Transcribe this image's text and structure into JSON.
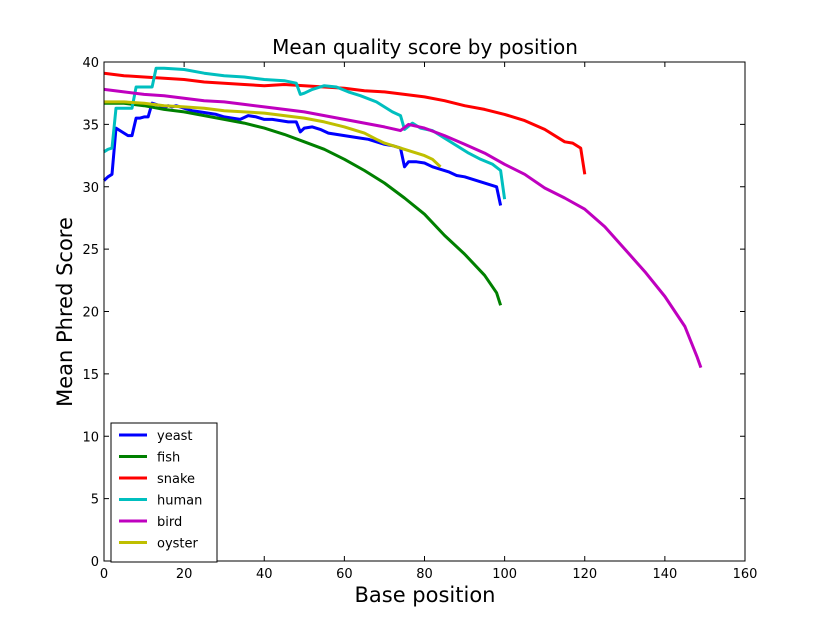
{
  "chart_data": {
    "type": "line",
    "title": "Mean quality score by position",
    "xlabel": "Base position",
    "ylabel": "Mean Phred Score",
    "xlim": [
      0,
      160
    ],
    "ylim": [
      0,
      40
    ],
    "xticks": [
      0,
      20,
      40,
      60,
      80,
      100,
      120,
      140,
      160
    ],
    "yticks": [
      0,
      5,
      10,
      15,
      20,
      25,
      30,
      35,
      40
    ],
    "grid": false,
    "legend_position": "lower-left",
    "series": [
      {
        "name": "yeast",
        "color": "#0000ff",
        "points": [
          [
            0,
            30.5
          ],
          [
            1,
            30.8
          ],
          [
            2,
            31.0
          ],
          [
            3,
            34.7
          ],
          [
            4,
            34.5
          ],
          [
            5,
            34.3
          ],
          [
            6,
            34.1
          ],
          [
            7,
            34.1
          ],
          [
            8,
            35.5
          ],
          [
            9,
            35.5
          ],
          [
            10,
            35.6
          ],
          [
            11,
            35.6
          ],
          [
            12,
            36.7
          ],
          [
            13,
            36.6
          ],
          [
            14,
            36.5
          ],
          [
            15,
            36.3
          ],
          [
            16,
            36.5
          ],
          [
            17,
            36.4
          ],
          [
            18,
            36.5
          ],
          [
            20,
            36.3
          ],
          [
            22,
            36.1
          ],
          [
            24,
            36.0
          ],
          [
            26,
            35.9
          ],
          [
            28,
            35.8
          ],
          [
            30,
            35.6
          ],
          [
            32,
            35.5
          ],
          [
            34,
            35.4
          ],
          [
            36,
            35.7
          ],
          [
            38,
            35.6
          ],
          [
            40,
            35.4
          ],
          [
            42,
            35.4
          ],
          [
            44,
            35.3
          ],
          [
            46,
            35.2
          ],
          [
            48,
            35.2
          ],
          [
            49,
            34.4
          ],
          [
            50,
            34.7
          ],
          [
            52,
            34.8
          ],
          [
            54,
            34.6
          ],
          [
            56,
            34.3
          ],
          [
            58,
            34.2
          ],
          [
            60,
            34.1
          ],
          [
            62,
            34.0
          ],
          [
            64,
            33.9
          ],
          [
            66,
            33.8
          ],
          [
            68,
            33.6
          ],
          [
            70,
            33.4
          ],
          [
            72,
            33.3
          ],
          [
            74,
            33.1
          ],
          [
            75,
            31.6
          ],
          [
            76,
            32.0
          ],
          [
            78,
            32.0
          ],
          [
            80,
            31.9
          ],
          [
            82,
            31.6
          ],
          [
            84,
            31.4
          ],
          [
            86,
            31.2
          ],
          [
            88,
            30.9
          ],
          [
            90,
            30.8
          ],
          [
            92,
            30.6
          ],
          [
            94,
            30.4
          ],
          [
            96,
            30.2
          ],
          [
            98,
            30.0
          ],
          [
            99,
            28.5
          ]
        ]
      },
      {
        "name": "fish",
        "color": "#008000",
        "points": [
          [
            0,
            36.7
          ],
          [
            5,
            36.7
          ],
          [
            10,
            36.5
          ],
          [
            15,
            36.2
          ],
          [
            20,
            36.0
          ],
          [
            25,
            35.7
          ],
          [
            30,
            35.4
          ],
          [
            35,
            35.1
          ],
          [
            40,
            34.7
          ],
          [
            45,
            34.2
          ],
          [
            50,
            33.6
          ],
          [
            55,
            33.0
          ],
          [
            60,
            32.2
          ],
          [
            65,
            31.3
          ],
          [
            70,
            30.3
          ],
          [
            75,
            29.1
          ],
          [
            80,
            27.8
          ],
          [
            85,
            26.1
          ],
          [
            90,
            24.6
          ],
          [
            95,
            22.9
          ],
          [
            98,
            21.5
          ],
          [
            99,
            20.5
          ]
        ]
      },
      {
        "name": "snake",
        "color": "#ff0000",
        "points": [
          [
            0,
            39.1
          ],
          [
            5,
            38.9
          ],
          [
            10,
            38.8
          ],
          [
            15,
            38.7
          ],
          [
            20,
            38.6
          ],
          [
            25,
            38.4
          ],
          [
            30,
            38.3
          ],
          [
            35,
            38.2
          ],
          [
            40,
            38.1
          ],
          [
            45,
            38.2
          ],
          [
            50,
            38.1
          ],
          [
            55,
            38.0
          ],
          [
            60,
            37.9
          ],
          [
            65,
            37.7
          ],
          [
            70,
            37.6
          ],
          [
            75,
            37.4
          ],
          [
            80,
            37.2
          ],
          [
            85,
            36.9
          ],
          [
            90,
            36.5
          ],
          [
            95,
            36.2
          ],
          [
            100,
            35.8
          ],
          [
            105,
            35.3
          ],
          [
            110,
            34.6
          ],
          [
            115,
            33.6
          ],
          [
            117,
            33.5
          ],
          [
            119,
            33.1
          ],
          [
            120,
            31.0
          ]
        ]
      },
      {
        "name": "human",
        "color": "#00bfbf",
        "points": [
          [
            0,
            32.8
          ],
          [
            1,
            33.0
          ],
          [
            2,
            33.1
          ],
          [
            3,
            36.3
          ],
          [
            5,
            36.3
          ],
          [
            7,
            36.3
          ],
          [
            8,
            38.0
          ],
          [
            10,
            38.0
          ],
          [
            12,
            38.0
          ],
          [
            13,
            39.5
          ],
          [
            15,
            39.5
          ],
          [
            20,
            39.4
          ],
          [
            25,
            39.1
          ],
          [
            30,
            38.9
          ],
          [
            35,
            38.8
          ],
          [
            40,
            38.6
          ],
          [
            45,
            38.5
          ],
          [
            48,
            38.3
          ],
          [
            49,
            37.4
          ],
          [
            50,
            37.5
          ],
          [
            52,
            37.8
          ],
          [
            55,
            38.1
          ],
          [
            58,
            38.0
          ],
          [
            61,
            37.6
          ],
          [
            64,
            37.3
          ],
          [
            68,
            36.8
          ],
          [
            72,
            36.0
          ],
          [
            74,
            35.7
          ],
          [
            75,
            34.6
          ],
          [
            77,
            35.1
          ],
          [
            79,
            34.7
          ],
          [
            82,
            34.5
          ],
          [
            85,
            33.9
          ],
          [
            88,
            33.3
          ],
          [
            91,
            32.7
          ],
          [
            94,
            32.2
          ],
          [
            97,
            31.8
          ],
          [
            99,
            31.3
          ],
          [
            100,
            29.0
          ]
        ]
      },
      {
        "name": "bird",
        "color": "#bf00bf",
        "points": [
          [
            0,
            37.8
          ],
          [
            5,
            37.6
          ],
          [
            10,
            37.4
          ],
          [
            15,
            37.3
          ],
          [
            20,
            37.1
          ],
          [
            25,
            36.9
          ],
          [
            30,
            36.8
          ],
          [
            35,
            36.6
          ],
          [
            40,
            36.4
          ],
          [
            45,
            36.2
          ],
          [
            50,
            36.0
          ],
          [
            55,
            35.7
          ],
          [
            60,
            35.4
          ],
          [
            65,
            35.1
          ],
          [
            70,
            34.8
          ],
          [
            74,
            34.5
          ],
          [
            76,
            35.0
          ],
          [
            80,
            34.7
          ],
          [
            85,
            34.1
          ],
          [
            90,
            33.4
          ],
          [
            95,
            32.7
          ],
          [
            100,
            31.8
          ],
          [
            105,
            31.0
          ],
          [
            110,
            29.9
          ],
          [
            115,
            29.1
          ],
          [
            120,
            28.2
          ],
          [
            125,
            26.8
          ],
          [
            130,
            25.0
          ],
          [
            135,
            23.2
          ],
          [
            140,
            21.2
          ],
          [
            145,
            18.8
          ],
          [
            148,
            16.4
          ],
          [
            149,
            15.5
          ]
        ]
      },
      {
        "name": "oyster",
        "color": "#bfbf00",
        "points": [
          [
            0,
            36.8
          ],
          [
            5,
            36.8
          ],
          [
            10,
            36.7
          ],
          [
            15,
            36.5
          ],
          [
            20,
            36.4
          ],
          [
            25,
            36.3
          ],
          [
            30,
            36.1
          ],
          [
            35,
            36.0
          ],
          [
            40,
            35.9
          ],
          [
            45,
            35.7
          ],
          [
            50,
            35.5
          ],
          [
            55,
            35.2
          ],
          [
            60,
            34.8
          ],
          [
            65,
            34.3
          ],
          [
            68,
            33.8
          ],
          [
            70,
            33.5
          ],
          [
            75,
            33.0
          ],
          [
            78,
            32.7
          ],
          [
            80,
            32.5
          ],
          [
            82,
            32.2
          ],
          [
            84,
            31.6
          ]
        ]
      }
    ]
  }
}
